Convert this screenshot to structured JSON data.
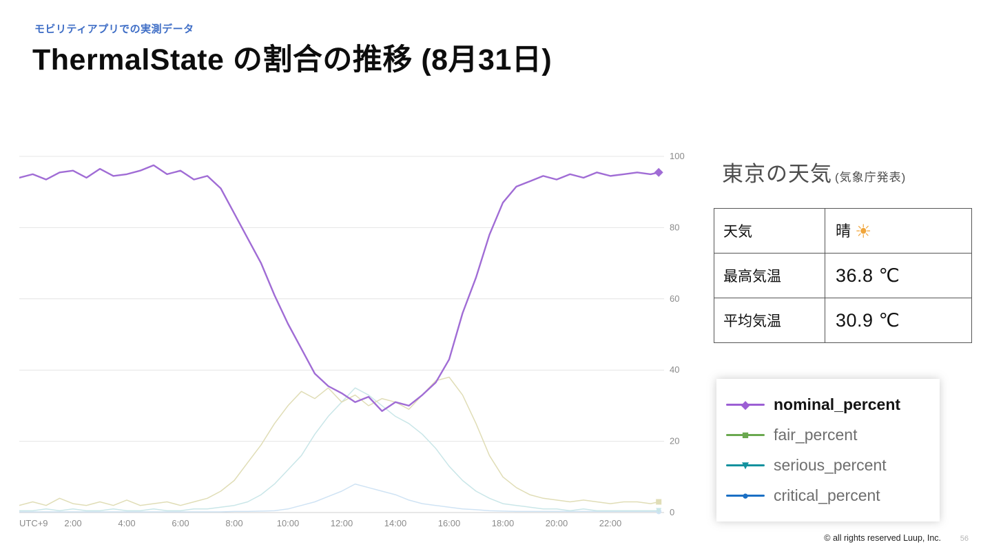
{
  "slide": {
    "eyebrow": "モビリティアプリでの実測データ",
    "title": "ThermalState の割合の推移 (8月31日)",
    "footer": "© all rights reserved Luup, Inc.",
    "page_number": "56"
  },
  "weather": {
    "title": "東京の天気",
    "title_note": "(気象庁発表)",
    "table": {
      "rows": [
        {
          "label": "天気",
          "value": "晴",
          "icon": "☀"
        },
        {
          "label": "最高気温",
          "value": "36.8 ℃",
          "icon": ""
        },
        {
          "label": "平均気温",
          "value": "30.9 ℃",
          "icon": ""
        }
      ]
    }
  },
  "legend": {
    "items": [
      {
        "label": "nominal_percent",
        "color": "#9c5fd4",
        "marker": "diamond",
        "emphasis": true
      },
      {
        "label": "fair_percent",
        "color": "#6aa84f",
        "marker": "square",
        "emphasis": false
      },
      {
        "label": "serious_percent",
        "color": "#12919e",
        "marker": "triangle-down",
        "emphasis": false
      },
      {
        "label": "critical_percent",
        "color": "#1a6fc4",
        "marker": "circle",
        "emphasis": false
      }
    ]
  },
  "chart_data": {
    "type": "line",
    "title": "ThermalState の割合の推移 (8月31日)",
    "xlabel": "UTC+9",
    "ylabel": "",
    "xlim": [
      0,
      24
    ],
    "ylim": [
      0,
      100
    ],
    "grid": "horizontal",
    "legend_position": "external-right",
    "y_ticks": [
      0,
      20,
      40,
      60,
      80,
      100
    ],
    "x_ticks": [
      {
        "h": 2,
        "label": "2:00"
      },
      {
        "h": 4,
        "label": "4:00"
      },
      {
        "h": 6,
        "label": "6:00"
      },
      {
        "h": 8,
        "label": "8:00"
      },
      {
        "h": 10,
        "label": "10:00"
      },
      {
        "h": 12,
        "label": "12:00"
      },
      {
        "h": 14,
        "label": "14:00"
      },
      {
        "h": 16,
        "label": "16:00"
      },
      {
        "h": 18,
        "label": "18:00"
      },
      {
        "h": 20,
        "label": "20:00"
      },
      {
        "h": 22,
        "label": "22:00"
      }
    ],
    "x": [
      0,
      0.5,
      1,
      1.5,
      2,
      2.5,
      3,
      3.5,
      4,
      4.5,
      5,
      5.5,
      6,
      6.5,
      7,
      7.5,
      8,
      8.5,
      9,
      9.5,
      10,
      10.5,
      11,
      11.5,
      12,
      12.5,
      13,
      13.5,
      14,
      14.5,
      15,
      15.5,
      16,
      16.5,
      17,
      17.5,
      18,
      18.5,
      19,
      19.5,
      20,
      20.5,
      21,
      21.5,
      22,
      22.5,
      23,
      23.5,
      23.8
    ],
    "series": [
      {
        "name": "nominal_percent",
        "line_color": "#a06cd5",
        "width": 2.4,
        "marker": "diamond",
        "marker_size": 6.5,
        "values": [
          94,
          95,
          93.5,
          95.5,
          96,
          94,
          96.5,
          94.5,
          95,
          96,
          97.5,
          95,
          96,
          93.5,
          94.5,
          91,
          84,
          77,
          70,
          61,
          53,
          46,
          39,
          35.5,
          33.5,
          31,
          32.5,
          28.5,
          31,
          30,
          33,
          36.5,
          43,
          56,
          66,
          78,
          87,
          91.5,
          93,
          94.5,
          93.5,
          95,
          94,
          95.5,
          94.5,
          95,
          95.5,
          95,
          95.5
        ]
      },
      {
        "name": "fair_percent",
        "line_color": "#e0ddb6",
        "width": 1.5,
        "marker": "square",
        "marker_size": 4,
        "values": [
          2,
          3,
          2,
          4,
          2.5,
          2,
          3,
          2,
          3.5,
          2,
          2.5,
          3,
          2,
          3,
          4,
          6,
          9,
          14,
          19,
          25,
          30,
          34,
          32,
          35,
          31,
          33,
          30,
          32,
          31,
          29,
          33,
          37,
          38,
          33,
          25,
          16,
          10,
          7,
          5,
          4,
          3.5,
          3,
          3.5,
          3,
          2.5,
          3,
          3,
          2.5,
          3
        ]
      },
      {
        "name": "serious_percent",
        "line_color": "#c9e6e8",
        "width": 1.5,
        "marker": "triangle-down",
        "marker_size": 4,
        "values": [
          0.5,
          0.5,
          1,
          0.5,
          1,
          0.5,
          0.5,
          1,
          0.5,
          0.5,
          1,
          0.5,
          0.5,
          1,
          1,
          1.5,
          2,
          3,
          5,
          8,
          12,
          16,
          22,
          27,
          31,
          35,
          33,
          30,
          27,
          25,
          22,
          18,
          13,
          9,
          6,
          4,
          2.5,
          2,
          1.5,
          1,
          1,
          0.5,
          1,
          0.5,
          0.5,
          0.5,
          0.5,
          0.5,
          0.5
        ]
      },
      {
        "name": "critical_percent",
        "line_color": "#cfe3f4",
        "width": 1.5,
        "marker": "circle",
        "marker_size": 4,
        "values": [
          0.2,
          0.2,
          0.2,
          0.2,
          0.2,
          0.2,
          0.2,
          0.2,
          0.2,
          0.2,
          0.2,
          0.2,
          0.2,
          0.2,
          0.2,
          0.2,
          0.3,
          0.3,
          0.4,
          0.5,
          1,
          2,
          3,
          4.5,
          6,
          8,
          7,
          6,
          5,
          3.5,
          2.5,
          2,
          1.5,
          1,
          0.8,
          0.5,
          0.4,
          0.3,
          0.3,
          0.3,
          0.3,
          0.3,
          0.3,
          0.3,
          0.3,
          0.3,
          0.3,
          0.3,
          0.3
        ]
      }
    ]
  }
}
